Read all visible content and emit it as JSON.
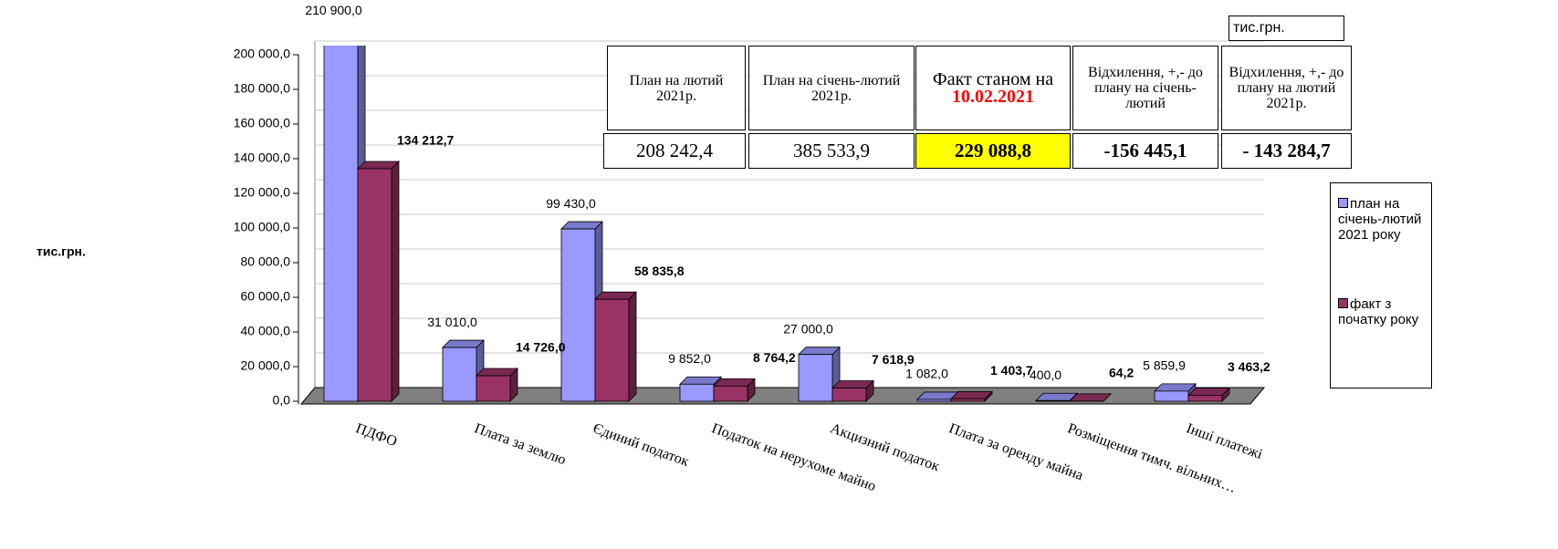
{
  "chart_data": {
    "type": "bar3d",
    "ylabel": "тис.грн.",
    "categories": [
      "ПДФО",
      "Плата за землю",
      "Єдиний податок",
      "Податок на нерухоме майно",
      "Акцизний податок",
      "Плата за оренду майна",
      "Розміщення тимч. вільних…",
      "Інші платежі"
    ],
    "series": [
      {
        "name": "план на січень-лютий 2021 року",
        "color": "#9999ff",
        "values": [
          210900,
          31010,
          99430,
          9852,
          27000,
          1082,
          400,
          5859.9
        ],
        "value_labels": [
          "210 900,0",
          "31 010,0",
          "99 430,0",
          "9 852,0",
          "27 000,0",
          "1 082,0",
          "400,0",
          "5 859,9"
        ]
      },
      {
        "name": "факт з початку року",
        "color": "#993366",
        "values": [
          134212.7,
          14726,
          58835.8,
          8764.2,
          7618.9,
          1403.7,
          64.2,
          3463.2
        ],
        "value_labels": [
          "134 212,7",
          "14 726,0",
          "58 835,8",
          "8 764,2",
          "7 618,9",
          "1 403,7",
          "64,2",
          "3 463,2"
        ]
      }
    ],
    "ylim": [
      0,
      200000
    ],
    "yticks": [
      {
        "value": 0,
        "label": "0,0"
      },
      {
        "value": 20000,
        "label": "20 000,0"
      },
      {
        "value": 40000,
        "label": "40 000,0"
      },
      {
        "value": 60000,
        "label": "60 000,0"
      },
      {
        "value": 80000,
        "label": "80 000,0"
      },
      {
        "value": 100000,
        "label": "100 000,0"
      },
      {
        "value": 120000,
        "label": "120 000,0"
      },
      {
        "value": 140000,
        "label": "140 000,0"
      },
      {
        "value": 160000,
        "label": "160 000,0"
      },
      {
        "value": 180000,
        "label": "180 000,0"
      },
      {
        "value": 200000,
        "label": "200 000,0"
      }
    ],
    "grid": true
  },
  "table": {
    "unit": "тис.грн.",
    "headers": [
      "План на лютий 2021р.",
      "План на січень-лютий 2021р.",
      {
        "text": "Факт станом на",
        "highlight": "10.02.2021"
      },
      "Відхилення, +,- до плану на січень-лютий",
      "Відхилення, +,- до плану на лютий 2021р."
    ],
    "values": [
      "208 242,4",
      "385 533,9",
      "229 088,8",
      "-156 445,1",
      "- 143 284,7"
    ]
  }
}
